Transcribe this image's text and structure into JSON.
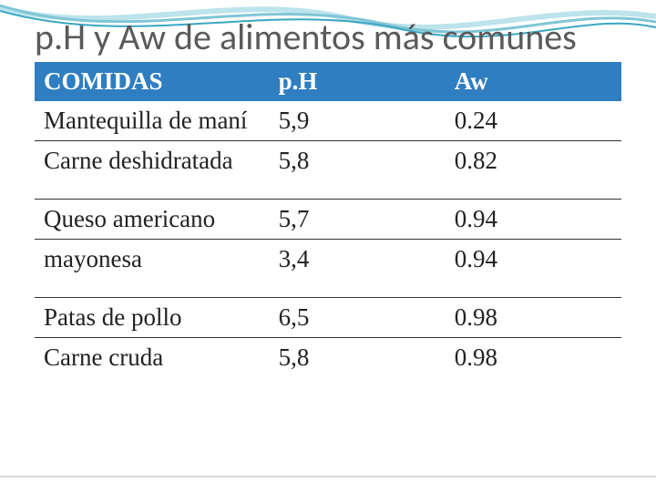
{
  "title": "p.H y Aw de alimentos más comunes",
  "title_fontsize": 40,
  "title_color": "#5a5a5a",
  "wave": {
    "stroke1": "#7fc6d6",
    "stroke2": "#3aa7c2",
    "stroke3": "#bde3ec"
  },
  "table": {
    "header_bg": "#2f7ec1",
    "header_text_color": "#ffffff",
    "cell_text_color": "#222222",
    "border_color": "#333333",
    "header_fontsize": 27,
    "cell_fontsize": 27,
    "col_widths_pct": [
      40,
      30,
      30
    ],
    "columns": [
      "COMIDAS",
      "p.H",
      "Aw"
    ],
    "groups": [
      {
        "rows": [
          [
            "Mantequilla de maní",
            "5,9",
            "0.24"
          ],
          [
            "Carne deshidratada",
            "5,8",
            "0.82"
          ]
        ]
      },
      {
        "rows": [
          [
            "Queso americano",
            "5,7",
            "0.94"
          ],
          [
            "mayonesa",
            "3,4",
            "0.94"
          ]
        ]
      },
      {
        "rows": [
          [
            "Patas de pollo",
            "6,5",
            "0.98"
          ],
          [
            "Carne cruda",
            "5,8",
            "0.98"
          ]
        ]
      }
    ]
  }
}
